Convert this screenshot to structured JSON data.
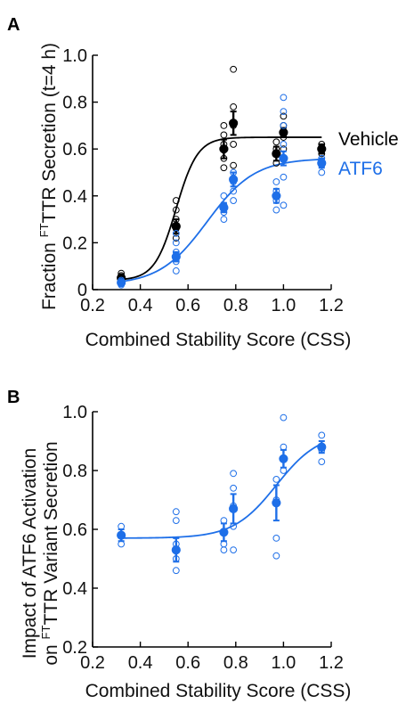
{
  "chart_data": [
    {
      "panel": "A",
      "type": "scatter",
      "xlabel": "Combined Stability Score (CSS)",
      "ylabel_prefix": "Fraction ",
      "ylabel_sup": "FT",
      "ylabel_suffix": "TTR Secretion (t=4 h)",
      "xlim": [
        0.2,
        1.2
      ],
      "ylim": [
        0,
        1.0
      ],
      "xticks": [
        "0.2",
        "0.4",
        "0.6",
        "0.8",
        "1.0",
        "1.2"
      ],
      "yticks": [
        "0",
        "0.2",
        "0.4",
        "0.6",
        "0.8",
        "1.0"
      ],
      "xtick_values": [
        0.2,
        0.4,
        0.6,
        0.8,
        1.0,
        1.2
      ],
      "ytick_values": [
        0,
        0.2,
        0.4,
        0.6,
        0.8,
        1.0
      ],
      "series": [
        {
          "name": "Vehicle",
          "color": "#000000",
          "means": [
            {
              "x": 0.32,
              "y": 0.05,
              "err": 0.01
            },
            {
              "x": 0.55,
              "y": 0.27,
              "err": 0.03
            },
            {
              "x": 0.75,
              "y": 0.6,
              "err": 0.04
            },
            {
              "x": 0.79,
              "y": 0.71,
              "err": 0.05
            },
            {
              "x": 0.97,
              "y": 0.58,
              "err": 0.03
            },
            {
              "x": 1.0,
              "y": 0.67,
              "err": 0.02
            },
            {
              "x": 1.16,
              "y": 0.6,
              "err": 0.02
            }
          ],
          "replicates": [
            {
              "x": 0.32,
              "y": 0.04
            },
            {
              "x": 0.32,
              "y": 0.06
            },
            {
              "x": 0.32,
              "y": 0.07
            },
            {
              "x": 0.55,
              "y": 0.22
            },
            {
              "x": 0.55,
              "y": 0.26
            },
            {
              "x": 0.55,
              "y": 0.3
            },
            {
              "x": 0.55,
              "y": 0.34
            },
            {
              "x": 0.55,
              "y": 0.38
            },
            {
              "x": 0.75,
              "y": 0.52
            },
            {
              "x": 0.75,
              "y": 0.56
            },
            {
              "x": 0.75,
              "y": 0.62
            },
            {
              "x": 0.75,
              "y": 0.66
            },
            {
              "x": 0.75,
              "y": 0.7
            },
            {
              "x": 0.79,
              "y": 0.53
            },
            {
              "x": 0.79,
              "y": 0.62
            },
            {
              "x": 0.79,
              "y": 0.7
            },
            {
              "x": 0.79,
              "y": 0.78
            },
            {
              "x": 0.79,
              "y": 0.94
            },
            {
              "x": 0.97,
              "y": 0.54
            },
            {
              "x": 0.97,
              "y": 0.58
            },
            {
              "x": 0.97,
              "y": 0.6
            },
            {
              "x": 0.97,
              "y": 0.63
            },
            {
              "x": 1.0,
              "y": 0.6
            },
            {
              "x": 1.0,
              "y": 0.65
            },
            {
              "x": 1.0,
              "y": 0.7
            },
            {
              "x": 1.0,
              "y": 0.74
            },
            {
              "x": 1.16,
              "y": 0.58
            },
            {
              "x": 1.16,
              "y": 0.6
            },
            {
              "x": 1.16,
              "y": 0.62
            }
          ],
          "fit": {
            "type": "sigmoid",
            "min": 0.04,
            "max": 0.65,
            "x50": 0.55,
            "slope": 0.045
          }
        },
        {
          "name": "ATF6",
          "color": "#1e6fe8",
          "means": [
            {
              "x": 0.32,
              "y": 0.03,
              "err": 0.01
            },
            {
              "x": 0.55,
              "y": 0.14,
              "err": 0.02
            },
            {
              "x": 0.75,
              "y": 0.35,
              "err": 0.02
            },
            {
              "x": 0.79,
              "y": 0.47,
              "err": 0.03
            },
            {
              "x": 0.97,
              "y": 0.4,
              "err": 0.03
            },
            {
              "x": 1.0,
              "y": 0.56,
              "err": 0.03
            },
            {
              "x": 1.16,
              "y": 0.54,
              "err": 0.02
            }
          ],
          "replicates": [
            {
              "x": 0.32,
              "y": 0.02
            },
            {
              "x": 0.32,
              "y": 0.03
            },
            {
              "x": 0.32,
              "y": 0.04
            },
            {
              "x": 0.55,
              "y": 0.08
            },
            {
              "x": 0.55,
              "y": 0.12
            },
            {
              "x": 0.55,
              "y": 0.16
            },
            {
              "x": 0.55,
              "y": 0.2
            },
            {
              "x": 0.55,
              "y": 0.24
            },
            {
              "x": 0.75,
              "y": 0.3
            },
            {
              "x": 0.75,
              "y": 0.33
            },
            {
              "x": 0.75,
              "y": 0.36
            },
            {
              "x": 0.75,
              "y": 0.4
            },
            {
              "x": 0.79,
              "y": 0.38
            },
            {
              "x": 0.79,
              "y": 0.42
            },
            {
              "x": 0.79,
              "y": 0.46
            },
            {
              "x": 0.79,
              "y": 0.5
            },
            {
              "x": 0.97,
              "y": 0.34
            },
            {
              "x": 0.97,
              "y": 0.38
            },
            {
              "x": 0.97,
              "y": 0.42
            },
            {
              "x": 0.97,
              "y": 0.46
            },
            {
              "x": 1.0,
              "y": 0.36
            },
            {
              "x": 1.0,
              "y": 0.48
            },
            {
              "x": 1.0,
              "y": 0.62
            },
            {
              "x": 1.0,
              "y": 0.7
            },
            {
              "x": 1.0,
              "y": 0.76
            },
            {
              "x": 1.0,
              "y": 0.82
            },
            {
              "x": 1.16,
              "y": 0.5
            },
            {
              "x": 1.16,
              "y": 0.53
            },
            {
              "x": 1.16,
              "y": 0.56
            }
          ],
          "fit": {
            "type": "sigmoid",
            "min": 0.02,
            "max": 0.56,
            "x50": 0.68,
            "slope": 0.1
          }
        }
      ],
      "legend": [
        "Vehicle",
        "ATF6"
      ],
      "legend_placement": "right"
    },
    {
      "panel": "B",
      "type": "scatter",
      "xlabel": "Combined Stability Score (CSS)",
      "ylabel_line1": "Impact of ATF6 Activation",
      "ylabel_line2_prefix": "on ",
      "ylabel_line2_sup": "FT",
      "ylabel_line2_suffix": "TTR Variant Secretion",
      "xlim": [
        0.2,
        1.2
      ],
      "ylim": [
        0.2,
        1.0
      ],
      "xticks": [
        "0.2",
        "0.4",
        "0.6",
        "0.8",
        "1.0",
        "1.2"
      ],
      "yticks": [
        "0.2",
        "0.4",
        "0.6",
        "0.8",
        "1.0"
      ],
      "xtick_values": [
        0.2,
        0.4,
        0.6,
        0.8,
        1.0,
        1.2
      ],
      "ytick_values": [
        0.2,
        0.4,
        0.6,
        0.8,
        1.0
      ],
      "series": [
        {
          "color": "#1e6fe8",
          "means": [
            {
              "x": 0.32,
              "y": 0.58,
              "err": 0.02
            },
            {
              "x": 0.55,
              "y": 0.53,
              "err": 0.04
            },
            {
              "x": 0.75,
              "y": 0.59,
              "err": 0.03
            },
            {
              "x": 0.79,
              "y": 0.67,
              "err": 0.05
            },
            {
              "x": 0.97,
              "y": 0.69,
              "err": 0.06
            },
            {
              "x": 1.0,
              "y": 0.84,
              "err": 0.03
            },
            {
              "x": 1.16,
              "y": 0.88,
              "err": 0.02
            }
          ],
          "replicates": [
            {
              "x": 0.32,
              "y": 0.55
            },
            {
              "x": 0.32,
              "y": 0.58
            },
            {
              "x": 0.32,
              "y": 0.61
            },
            {
              "x": 0.55,
              "y": 0.46
            },
            {
              "x": 0.55,
              "y": 0.5
            },
            {
              "x": 0.55,
              "y": 0.55
            },
            {
              "x": 0.55,
              "y": 0.63
            },
            {
              "x": 0.55,
              "y": 0.66
            },
            {
              "x": 0.75,
              "y": 0.53
            },
            {
              "x": 0.75,
              "y": 0.55
            },
            {
              "x": 0.75,
              "y": 0.59
            },
            {
              "x": 0.75,
              "y": 0.63
            },
            {
              "x": 0.79,
              "y": 0.53
            },
            {
              "x": 0.79,
              "y": 0.61
            },
            {
              "x": 0.79,
              "y": 0.68
            },
            {
              "x": 0.79,
              "y": 0.74
            },
            {
              "x": 0.79,
              "y": 0.79
            },
            {
              "x": 0.97,
              "y": 0.51
            },
            {
              "x": 0.97,
              "y": 0.57
            },
            {
              "x": 0.97,
              "y": 0.7
            },
            {
              "x": 0.97,
              "y": 0.77
            },
            {
              "x": 1.0,
              "y": 0.8
            },
            {
              "x": 1.0,
              "y": 0.84
            },
            {
              "x": 1.0,
              "y": 0.88
            },
            {
              "x": 1.0,
              "y": 0.98
            },
            {
              "x": 1.16,
              "y": 0.83
            },
            {
              "x": 1.16,
              "y": 0.87
            },
            {
              "x": 1.16,
              "y": 0.92
            }
          ],
          "fit": {
            "type": "sigmoid",
            "min": 0.57,
            "max": 0.93,
            "x50": 0.97,
            "slope": 0.09
          }
        }
      ]
    }
  ]
}
